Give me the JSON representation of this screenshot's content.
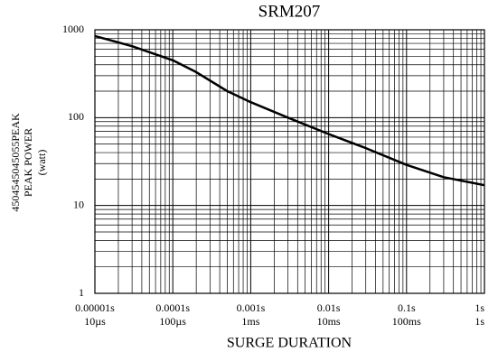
{
  "chart_data": {
    "type": "line",
    "title": "SRM207",
    "x_label": "SURGE DURATION",
    "y_label": [
      "4504545045055PEAK",
      "PEAK POWER",
      "(watt)"
    ],
    "log_x": true,
    "log_y": true,
    "grid": "minor",
    "xlim": [
      1e-05,
      1
    ],
    "ylim": [
      1,
      1000
    ],
    "xticks": [
      {
        "value": 1e-05,
        "label": "0.00001s",
        "sublabel": "10µs"
      },
      {
        "value": 0.0001,
        "label": "0.0001s",
        "sublabel": "100µs"
      },
      {
        "value": 0.001,
        "label": "0.001s",
        "sublabel": "1ms"
      },
      {
        "value": 0.01,
        "label": "0.01s",
        "sublabel": "10ms"
      },
      {
        "value": 0.1,
        "label": "0.1s",
        "sublabel": "100ms"
      },
      {
        "value": 1,
        "label": "1s",
        "sublabel": "1s"
      }
    ],
    "yticks": [
      1,
      10,
      100,
      1000
    ],
    "series": [
      {
        "color": "#000000",
        "x": [
          1e-05,
          3e-05,
          0.0001,
          0.0002,
          0.0005,
          0.001,
          0.003,
          0.01,
          0.03,
          0.1,
          0.3,
          1
        ],
        "values": [
          850,
          650,
          450,
          330,
          200,
          150,
          100,
          65,
          45,
          29,
          21,
          17
        ]
      }
    ]
  }
}
